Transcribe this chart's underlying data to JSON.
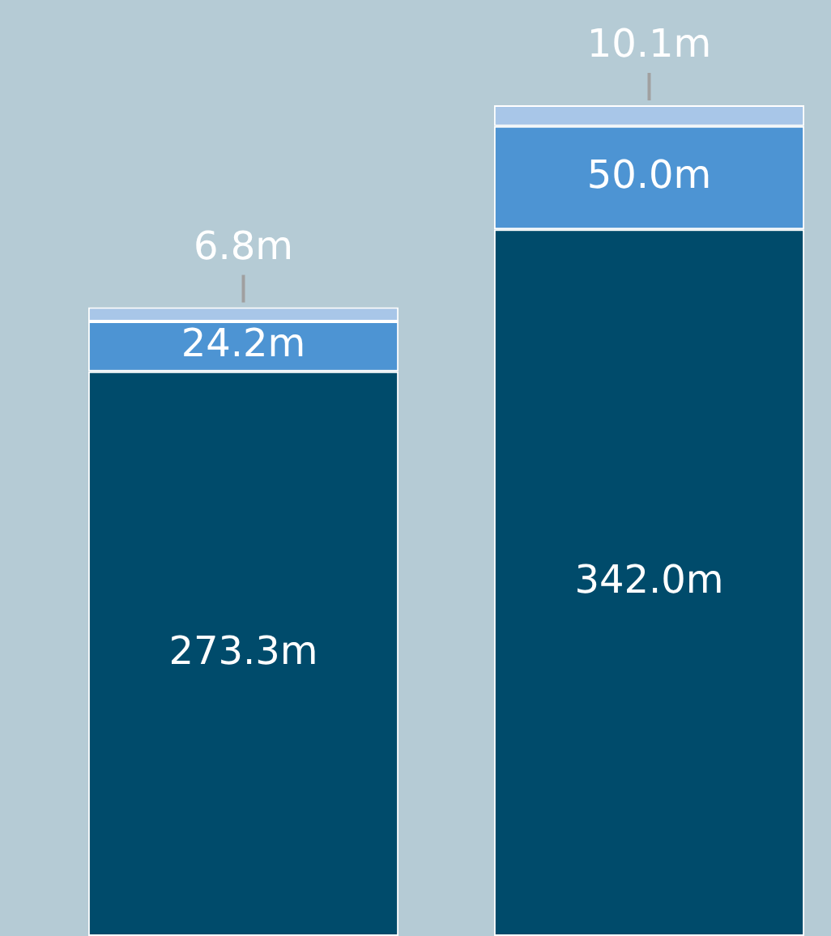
{
  "chart_data": {
    "type": "bar",
    "stacked": true,
    "categories": [
      null,
      null
    ],
    "series": [
      {
        "color": "#004b6b",
        "values": [
          273.3,
          342.0
        ],
        "value_labels": [
          "273.3m",
          "342.0m"
        ]
      },
      {
        "color": "#4d94d3",
        "values": [
          24.2,
          50.0
        ],
        "value_labels": [
          "24.2m",
          "50.0m"
        ]
      },
      {
        "color": "#a8c6e8",
        "values": [
          6.8,
          10.1
        ],
        "value_labels": [
          "6.8m",
          "10.1m"
        ]
      }
    ]
  }
}
